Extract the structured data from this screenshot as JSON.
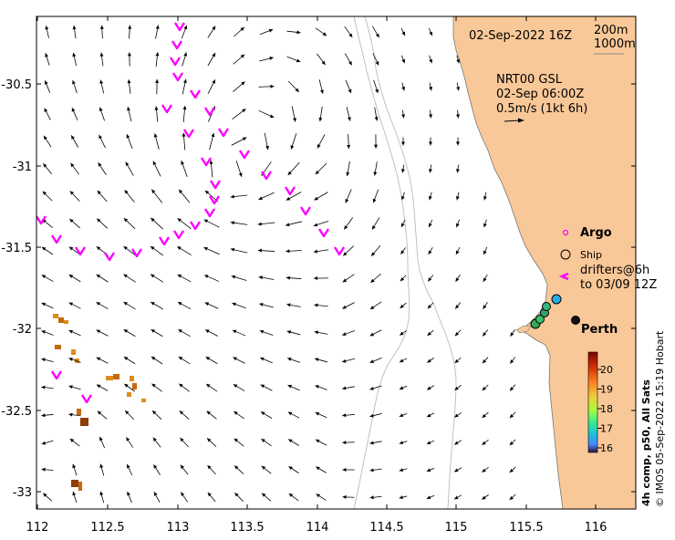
{
  "header": {
    "date": "02-Sep-2022 16Z",
    "isobath_1": "200m",
    "isobath_2": "1000m"
  },
  "current_info": {
    "source": "NRT00 GSL",
    "time": "02-Sep 06:00Z",
    "scale_label": "0.5m/s (1kt 6h)"
  },
  "legend": {
    "argo": "Argo",
    "ship": "Ship",
    "drifters_line1": "drifters@6h",
    "drifters_line2": "to 03/09 12Z",
    "city": "Perth"
  },
  "colorbar": {
    "title": "4h comp, p50, All Sats",
    "ticks": [
      "20",
      "19",
      "18",
      "17",
      "16"
    ]
  },
  "credit": "© IMOS 05-Sep-2022 15:19 Hobart",
  "axes": {
    "x_ticks": [
      "112",
      "112.5",
      "113",
      "113.5",
      "114",
      "114.5",
      "115",
      "115.5",
      "116"
    ],
    "y_ticks": [
      "-30.5",
      "-31",
      "-31.5",
      "-32",
      "-32.5",
      "-33"
    ]
  },
  "colors": {
    "land": "#f9c898",
    "current_arrows": "#000000",
    "drifters": "#ff00ff",
    "sst_warm": "#b8530a",
    "sst_cool": "#e08a1c",
    "ship_markers": "#34a853"
  }
}
